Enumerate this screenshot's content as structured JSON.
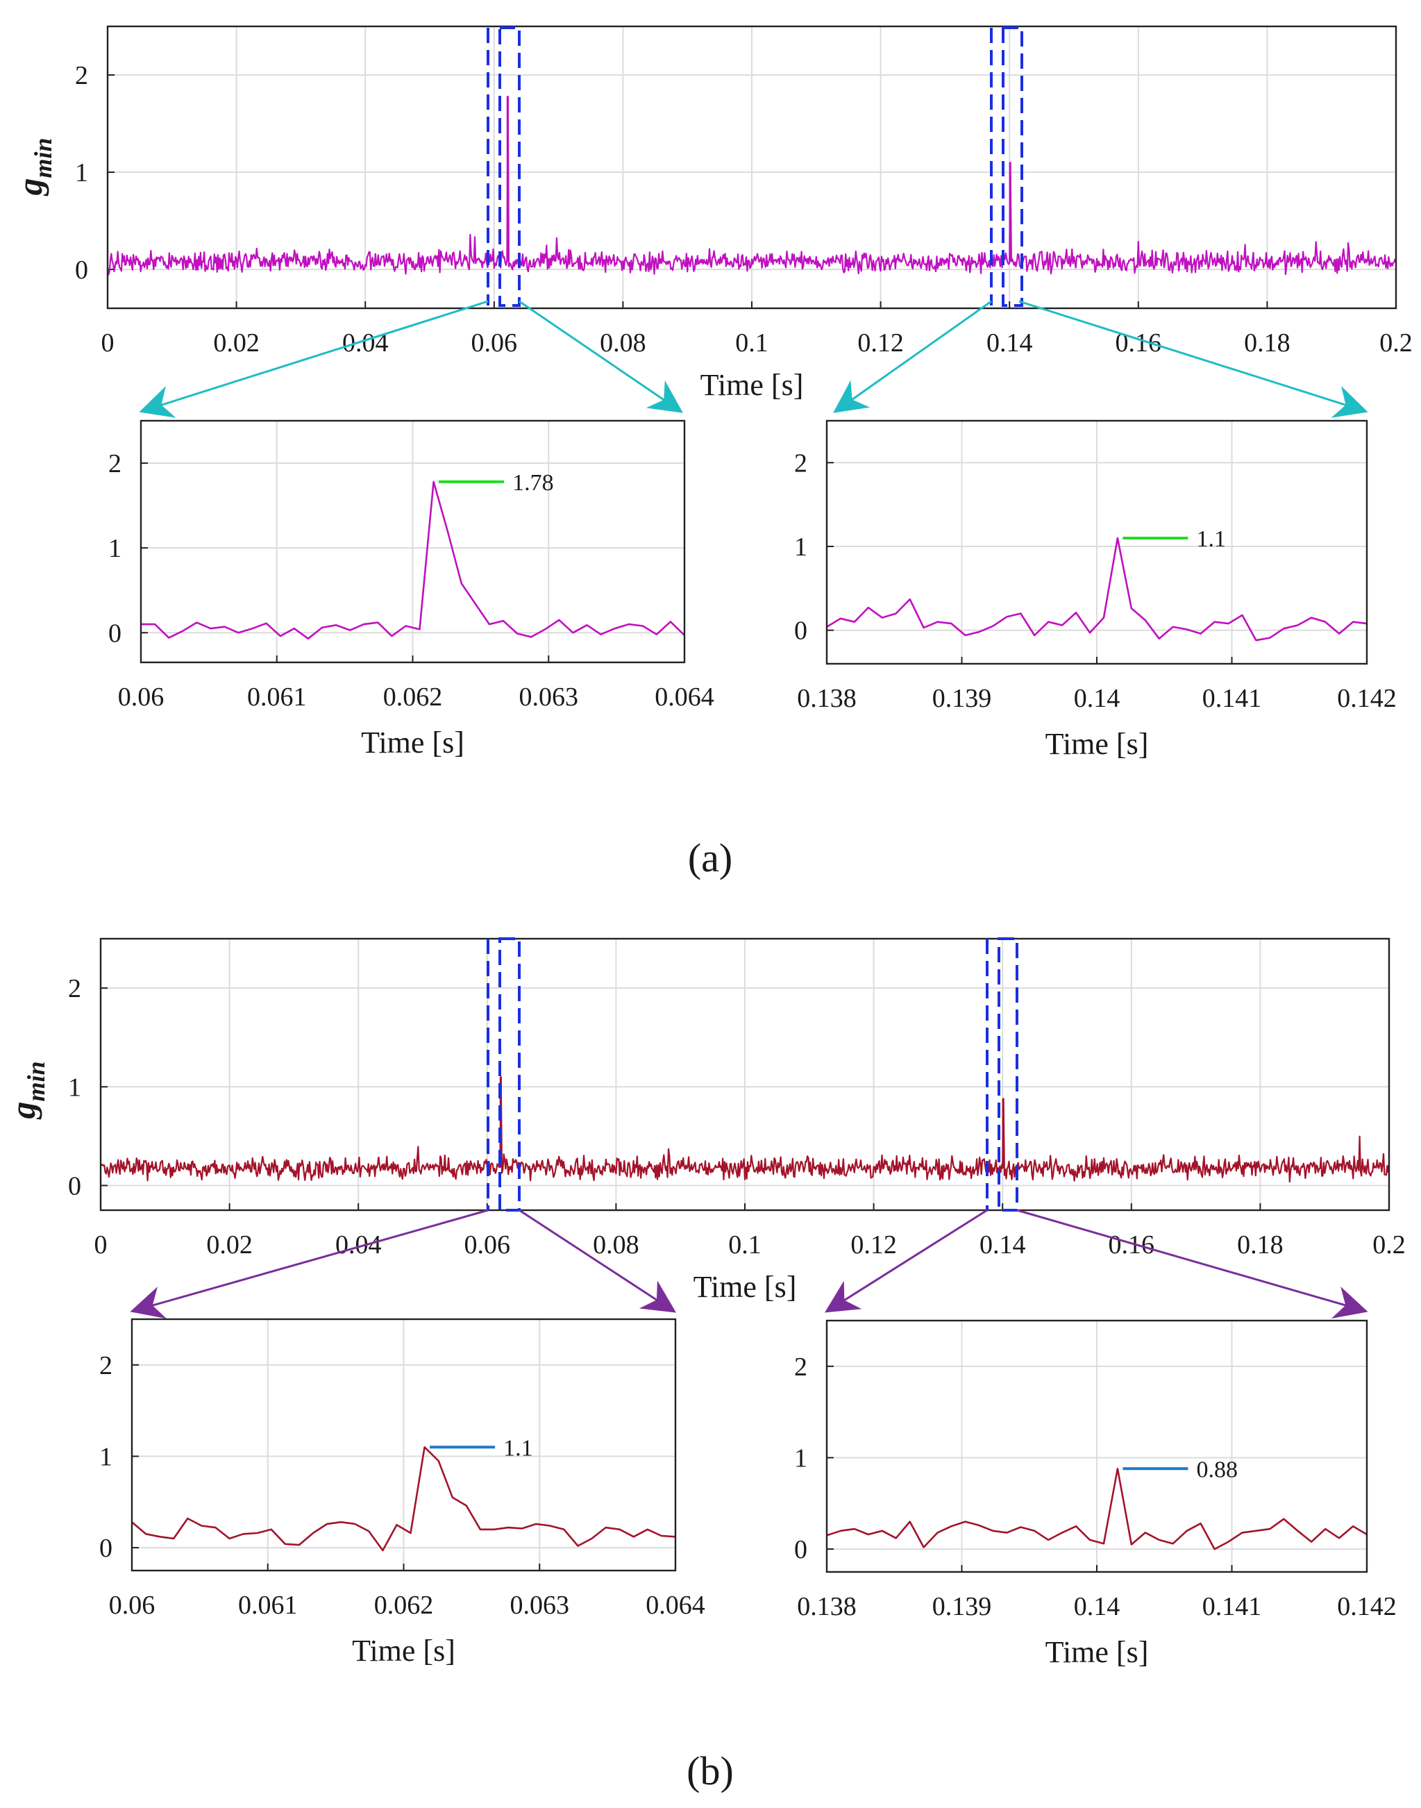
{
  "figure": {
    "panels": [
      {
        "label": "(a)",
        "color": "#c010c0",
        "arrow_color": "#20bcc4",
        "marker_color": "#22dd22",
        "ylabel_main": "g",
        "ylabel_sub": "min",
        "main": {
          "xlim": [
            0,
            0.2
          ],
          "ylim": [
            -0.4,
            2.5
          ],
          "xticks": [
            "0",
            "0.02",
            "0.04",
            "0.06",
            "0.08",
            "0.1",
            "0.12",
            "0.14",
            "0.16",
            "0.18",
            "0.2"
          ],
          "yticks": [
            "0",
            "1",
            "2"
          ],
          "xlabel": "Time [s]",
          "baseline": 0.08,
          "noise": 0.09,
          "spikes": [
            {
              "x": 0.0621,
              "y": 1.78
            },
            {
              "x": 0.1401,
              "y": 1.1
            }
          ]
        },
        "zooms": [
          {
            "xlim": [
              0.06,
              0.064
            ],
            "ylim": [
              -0.35,
              2.5
            ],
            "xticks": [
              "0.06",
              "0.061",
              "0.062",
              "0.063",
              "0.064"
            ],
            "yticks": [
              "0",
              "1",
              "2"
            ],
            "xlabel": "Time [s]",
            "peak": {
              "x": 0.0621,
              "y": 1.78,
              "label": "1.78"
            },
            "values": [
              0.1,
              0.1,
              -0.06,
              0.02,
              0.12,
              0.05,
              0.07,
              0.0,
              0.05,
              0.11,
              -0.04,
              0.05,
              -0.07,
              0.06,
              0.09,
              0.03,
              0.1,
              0.12,
              -0.04,
              0.08,
              0.04,
              1.78,
              1.2,
              0.58,
              0.34,
              0.1,
              0.14,
              -0.01,
              -0.05,
              0.04,
              0.15,
              0.0,
              0.09,
              -0.02,
              0.05,
              0.1,
              0.08,
              -0.02,
              0.13,
              -0.03
            ]
          },
          {
            "xlim": [
              0.138,
              0.142
            ],
            "ylim": [
              -0.4,
              2.5
            ],
            "xticks": [
              "0.138",
              "0.139",
              "0.14",
              "0.141",
              "0.142"
            ],
            "yticks": [
              "0",
              "1",
              "2"
            ],
            "xlabel": "Time [s]",
            "peak": {
              "x": 0.1401,
              "y": 1.1,
              "label": "1.1"
            },
            "values": [
              0.04,
              0.14,
              0.1,
              0.27,
              0.15,
              0.2,
              0.37,
              0.03,
              0.1,
              0.08,
              -0.06,
              -0.02,
              0.05,
              0.16,
              0.2,
              -0.06,
              0.1,
              0.06,
              0.21,
              -0.03,
              0.15,
              1.1,
              0.26,
              0.12,
              -0.1,
              0.04,
              0.01,
              -0.04,
              0.1,
              0.08,
              0.18,
              -0.12,
              -0.09,
              0.02,
              0.06,
              0.15,
              0.1,
              -0.04,
              0.1,
              0.08
            ]
          }
        ]
      },
      {
        "label": "(b)",
        "color": "#a3132a",
        "arrow_color": "#7a2e9a",
        "marker_color": "#1f78c8",
        "ylabel_main": "g",
        "ylabel_sub": "min",
        "main": {
          "xlim": [
            0,
            0.2
          ],
          "ylim": [
            -0.25,
            2.5
          ],
          "xticks": [
            "0",
            "0.02",
            "0.04",
            "0.06",
            "0.08",
            "0.1",
            "0.12",
            "0.14",
            "0.16",
            "0.18",
            "0.2"
          ],
          "yticks": [
            "0",
            "1",
            "2"
          ],
          "xlabel": "Time [s]",
          "baseline": 0.18,
          "noise": 0.09,
          "spikes": [
            {
              "x": 0.0621,
              "y": 1.1
            },
            {
              "x": 0.1401,
              "y": 0.88
            }
          ]
        },
        "zooms": [
          {
            "xlim": [
              0.06,
              0.064
            ],
            "ylim": [
              -0.25,
              2.5
            ],
            "xticks": [
              "0.06",
              "0.061",
              "0.062",
              "0.063",
              "0.064"
            ],
            "yticks": [
              "0",
              "1",
              "2"
            ],
            "xlabel": "Time [s]",
            "peak": {
              "x": 0.0621,
              "y": 1.1,
              "label": "1.1"
            },
            "values": [
              0.28,
              0.15,
              0.12,
              0.1,
              0.32,
              0.24,
              0.22,
              0.1,
              0.15,
              0.16,
              0.2,
              0.04,
              0.03,
              0.16,
              0.26,
              0.28,
              0.26,
              0.18,
              -0.03,
              0.25,
              0.16,
              1.1,
              0.95,
              0.55,
              0.46,
              0.2,
              0.2,
              0.22,
              0.21,
              0.26,
              0.24,
              0.2,
              0.02,
              0.1,
              0.22,
              0.2,
              0.12,
              0.2,
              0.13,
              0.12
            ]
          },
          {
            "xlim": [
              0.138,
              0.142
            ],
            "ylim": [
              -0.25,
              2.5
            ],
            "xticks": [
              "0.138",
              "0.139",
              "0.14",
              "0.141",
              "0.142"
            ],
            "yticks": [
              "0",
              "1",
              "2"
            ],
            "xlabel": "Time [s]",
            "peak": {
              "x": 0.1401,
              "y": 0.88,
              "label": "0.88"
            },
            "values": [
              0.15,
              0.2,
              0.22,
              0.16,
              0.2,
              0.12,
              0.3,
              0.02,
              0.18,
              0.25,
              0.3,
              0.26,
              0.2,
              0.18,
              0.24,
              0.2,
              0.1,
              0.18,
              0.25,
              0.1,
              0.06,
              0.88,
              0.05,
              0.18,
              0.1,
              0.06,
              0.2,
              0.28,
              0.0,
              0.08,
              0.18,
              0.2,
              0.22,
              0.33,
              0.2,
              0.08,
              0.22,
              0.12,
              0.25,
              0.16
            ]
          }
        ]
      }
    ]
  },
  "chart_data": [
    {
      "type": "line",
      "panel": "(a)",
      "view": "overview",
      "title": "",
      "xlabel": "Time [s]",
      "ylabel": "g_min",
      "xlim": [
        0,
        0.2
      ],
      "ylim": [
        -0.4,
        2.5
      ],
      "grid": true,
      "series": [
        {
          "name": "g_min",
          "description": "noise around ~0.08 with spikes",
          "peaks": [
            {
              "x": 0.0621,
              "y": 1.78
            },
            {
              "x": 0.1401,
              "y": 1.1
            }
          ]
        }
      ]
    },
    {
      "type": "line",
      "panel": "(a)",
      "view": "zoom",
      "xlabel": "Time [s]",
      "xlim": [
        0.06,
        0.064
      ],
      "ylim": [
        -0.35,
        2.5
      ],
      "grid": true,
      "annotations": [
        {
          "x": 0.0621,
          "y": 1.78,
          "text": "1.78"
        }
      ]
    },
    {
      "type": "line",
      "panel": "(a)",
      "view": "zoom",
      "xlabel": "Time [s]",
      "xlim": [
        0.138,
        0.142
      ],
      "ylim": [
        -0.4,
        2.5
      ],
      "grid": true,
      "annotations": [
        {
          "x": 0.1401,
          "y": 1.1,
          "text": "1.1"
        }
      ]
    },
    {
      "type": "line",
      "panel": "(b)",
      "view": "overview",
      "title": "",
      "xlabel": "Time [s]",
      "ylabel": "g_min",
      "xlim": [
        0,
        0.2
      ],
      "ylim": [
        -0.25,
        2.5
      ],
      "grid": true,
      "series": [
        {
          "name": "g_min",
          "description": "noise around ~0.18 with spikes",
          "peaks": [
            {
              "x": 0.0621,
              "y": 1.1
            },
            {
              "x": 0.1401,
              "y": 0.88
            }
          ]
        }
      ]
    },
    {
      "type": "line",
      "panel": "(b)",
      "view": "zoom",
      "xlabel": "Time [s]",
      "xlim": [
        0.06,
        0.064
      ],
      "ylim": [
        -0.25,
        2.5
      ],
      "grid": true,
      "annotations": [
        {
          "x": 0.0621,
          "y": 1.1,
          "text": "1.1"
        }
      ]
    },
    {
      "type": "line",
      "panel": "(b)",
      "view": "zoom",
      "xlabel": "Time [s]",
      "xlim": [
        0.138,
        0.142
      ],
      "ylim": [
        -0.25,
        2.5
      ],
      "grid": true,
      "annotations": [
        {
          "x": 0.1401,
          "y": 0.88,
          "text": "0.88"
        }
      ]
    }
  ]
}
